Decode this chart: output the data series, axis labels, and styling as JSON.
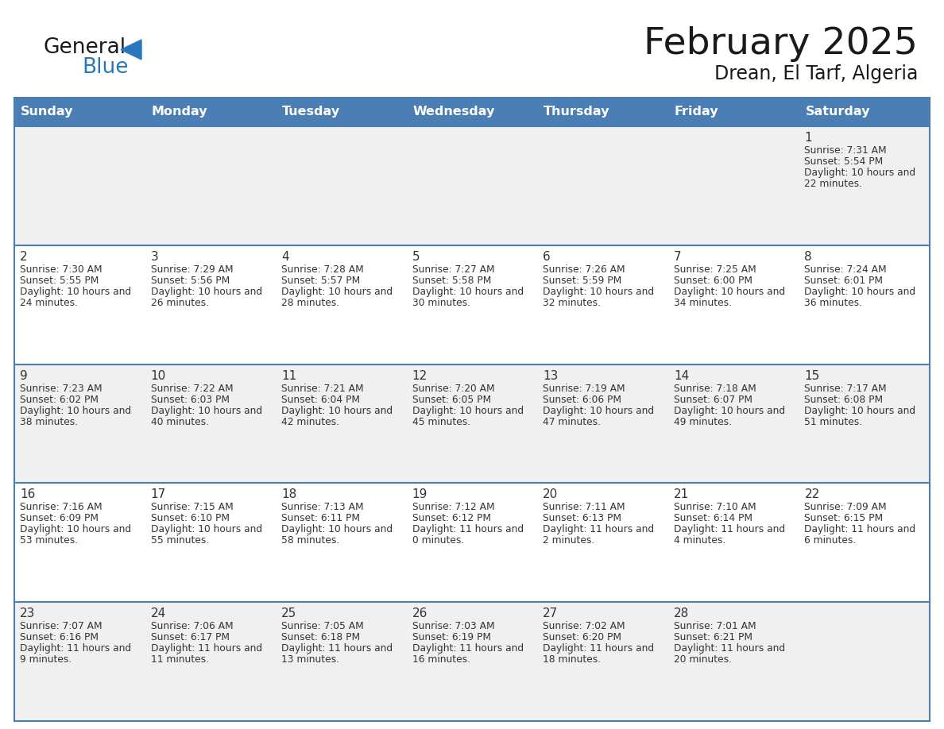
{
  "title": "February 2025",
  "subtitle": "Drean, El Tarf, Algeria",
  "days_of_week": [
    "Sunday",
    "Monday",
    "Tuesday",
    "Wednesday",
    "Thursday",
    "Friday",
    "Saturday"
  ],
  "header_bg": "#4a7eb5",
  "header_text": "#ffffff",
  "cell_bg_light": "#f0f0f0",
  "cell_bg_white": "#ffffff",
  "row_divider_color": "#4a7eb5",
  "day_number_color": "#333333",
  "info_text_color": "#333333",
  "title_color": "#1a1a1a",
  "logo_general_color": "#1a1a1a",
  "logo_blue_color": "#2878c0",
  "calendar_data": [
    [
      null,
      null,
      null,
      null,
      null,
      null,
      {
        "day": 1,
        "sunrise": "7:31 AM",
        "sunset": "5:54 PM",
        "daylight": "10 hours and 22 minutes."
      }
    ],
    [
      {
        "day": 2,
        "sunrise": "7:30 AM",
        "sunset": "5:55 PM",
        "daylight": "10 hours and 24 minutes."
      },
      {
        "day": 3,
        "sunrise": "7:29 AM",
        "sunset": "5:56 PM",
        "daylight": "10 hours and 26 minutes."
      },
      {
        "day": 4,
        "sunrise": "7:28 AM",
        "sunset": "5:57 PM",
        "daylight": "10 hours and 28 minutes."
      },
      {
        "day": 5,
        "sunrise": "7:27 AM",
        "sunset": "5:58 PM",
        "daylight": "10 hours and 30 minutes."
      },
      {
        "day": 6,
        "sunrise": "7:26 AM",
        "sunset": "5:59 PM",
        "daylight": "10 hours and 32 minutes."
      },
      {
        "day": 7,
        "sunrise": "7:25 AM",
        "sunset": "6:00 PM",
        "daylight": "10 hours and 34 minutes."
      },
      {
        "day": 8,
        "sunrise": "7:24 AM",
        "sunset": "6:01 PM",
        "daylight": "10 hours and 36 minutes."
      }
    ],
    [
      {
        "day": 9,
        "sunrise": "7:23 AM",
        "sunset": "6:02 PM",
        "daylight": "10 hours and 38 minutes."
      },
      {
        "day": 10,
        "sunrise": "7:22 AM",
        "sunset": "6:03 PM",
        "daylight": "10 hours and 40 minutes."
      },
      {
        "day": 11,
        "sunrise": "7:21 AM",
        "sunset": "6:04 PM",
        "daylight": "10 hours and 42 minutes."
      },
      {
        "day": 12,
        "sunrise": "7:20 AM",
        "sunset": "6:05 PM",
        "daylight": "10 hours and 45 minutes."
      },
      {
        "day": 13,
        "sunrise": "7:19 AM",
        "sunset": "6:06 PM",
        "daylight": "10 hours and 47 minutes."
      },
      {
        "day": 14,
        "sunrise": "7:18 AM",
        "sunset": "6:07 PM",
        "daylight": "10 hours and 49 minutes."
      },
      {
        "day": 15,
        "sunrise": "7:17 AM",
        "sunset": "6:08 PM",
        "daylight": "10 hours and 51 minutes."
      }
    ],
    [
      {
        "day": 16,
        "sunrise": "7:16 AM",
        "sunset": "6:09 PM",
        "daylight": "10 hours and 53 minutes."
      },
      {
        "day": 17,
        "sunrise": "7:15 AM",
        "sunset": "6:10 PM",
        "daylight": "10 hours and 55 minutes."
      },
      {
        "day": 18,
        "sunrise": "7:13 AM",
        "sunset": "6:11 PM",
        "daylight": "10 hours and 58 minutes."
      },
      {
        "day": 19,
        "sunrise": "7:12 AM",
        "sunset": "6:12 PM",
        "daylight": "11 hours and 0 minutes."
      },
      {
        "day": 20,
        "sunrise": "7:11 AM",
        "sunset": "6:13 PM",
        "daylight": "11 hours and 2 minutes."
      },
      {
        "day": 21,
        "sunrise": "7:10 AM",
        "sunset": "6:14 PM",
        "daylight": "11 hours and 4 minutes."
      },
      {
        "day": 22,
        "sunrise": "7:09 AM",
        "sunset": "6:15 PM",
        "daylight": "11 hours and 6 minutes."
      }
    ],
    [
      {
        "day": 23,
        "sunrise": "7:07 AM",
        "sunset": "6:16 PM",
        "daylight": "11 hours and 9 minutes."
      },
      {
        "day": 24,
        "sunrise": "7:06 AM",
        "sunset": "6:17 PM",
        "daylight": "11 hours and 11 minutes."
      },
      {
        "day": 25,
        "sunrise": "7:05 AM",
        "sunset": "6:18 PM",
        "daylight": "11 hours and 13 minutes."
      },
      {
        "day": 26,
        "sunrise": "7:03 AM",
        "sunset": "6:19 PM",
        "daylight": "11 hours and 16 minutes."
      },
      {
        "day": 27,
        "sunrise": "7:02 AM",
        "sunset": "6:20 PM",
        "daylight": "11 hours and 18 minutes."
      },
      {
        "day": 28,
        "sunrise": "7:01 AM",
        "sunset": "6:21 PM",
        "daylight": "11 hours and 20 minutes."
      },
      null
    ]
  ],
  "row_bg_colors": [
    "#f0f0f0",
    "#ffffff",
    "#f0f0f0",
    "#ffffff",
    "#f0f0f0"
  ]
}
